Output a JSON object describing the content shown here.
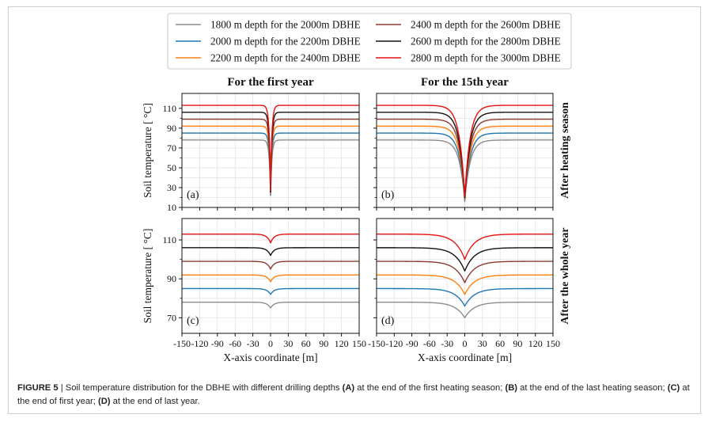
{
  "chart_data": {
    "type": "line",
    "column_titles": [
      "For the first year",
      "For the 15th year"
    ],
    "row_labels": [
      "After heating season",
      "After the whole year"
    ],
    "ylabel": "Soil temperature  [ °C]",
    "xlabel": "X-axis coordinate [m]",
    "x_ticks": [
      -150,
      -120,
      -90,
      -60,
      -30,
      0,
      30,
      60,
      90,
      120,
      150
    ],
    "xlim": [
      -150,
      150
    ],
    "legend": [
      {
        "name": "1800 m depth for the 2000m DBHE",
        "color": "#8c8c8c"
      },
      {
        "name": "2400 m depth for the 2600m DBHE",
        "color": "#8b3a33"
      },
      {
        "name": "2000 m depth for the 2200m DBHE",
        "color": "#1f77b4"
      },
      {
        "name": "2600 m depth for the 2800m DBHE",
        "color": "#111111"
      },
      {
        "name": "2200 m depth for the 2400m DBHE",
        "color": "#ff7f0e"
      },
      {
        "name": "2800 m depth for the 3000m DBHE",
        "color": "#e81010"
      }
    ],
    "series_order": [
      "1800 m depth for the 2000m DBHE",
      "2000 m depth for the 2200m DBHE",
      "2200 m depth for the 2400m DBHE",
      "2400 m depth for the 2600m DBHE",
      "2600 m depth for the 2800m DBHE",
      "2800 m depth for the 3000m DBHE"
    ],
    "far_field_temperature": [
      78,
      85,
      92,
      99,
      106,
      113
    ],
    "panels": [
      {
        "label": "(a)",
        "ylim": [
          10,
          125
        ],
        "y_ticks": [
          10,
          30,
          50,
          70,
          90,
          110
        ],
        "y_ticks_minor": [
          20,
          40,
          60,
          80,
          100
        ],
        "min_temperature": [
          22,
          23,
          24,
          25,
          26,
          27
        ],
        "influence_width_m": 2.2
      },
      {
        "label": "(b)",
        "ylim": [
          10,
          125
        ],
        "y_ticks": [
          10,
          30,
          50,
          70,
          90,
          110
        ],
        "y_ticks_minor": [
          20,
          40,
          60,
          80,
          100
        ],
        "min_temperature": [
          16,
          17,
          18,
          19,
          20,
          21
        ],
        "influence_width_m": 9
      },
      {
        "label": "(c)",
        "ylim": [
          62,
          121
        ],
        "y_ticks": [
          70,
          90,
          110
        ],
        "y_ticks_minor": [
          80,
          100
        ],
        "min_temperature": [
          75,
          82,
          88.5,
          95,
          102,
          108.5
        ],
        "influence_width_m": 6
      },
      {
        "label": "(d)",
        "ylim": [
          62,
          121
        ],
        "y_ticks": [
          70,
          90,
          110
        ],
        "y_ticks_minor": [
          80,
          100
        ],
        "min_temperature": [
          70,
          76,
          82,
          88,
          94,
          100
        ],
        "influence_width_m": 16
      }
    ]
  },
  "caption": {
    "figure_label": "FIGURE 5",
    "separator": " | ",
    "text_1": "Soil temperature distribution for the DBHE with different drilling depths ",
    "bold_a": "(A)",
    "text_2": " at the end of the first heating season; ",
    "bold_b": "(B)",
    "text_3": " at the end of the last heating season; ",
    "bold_c": "(C)",
    "text_4": " at the end of first year; ",
    "bold_d": "(D)",
    "text_5": " at the end of last year."
  }
}
